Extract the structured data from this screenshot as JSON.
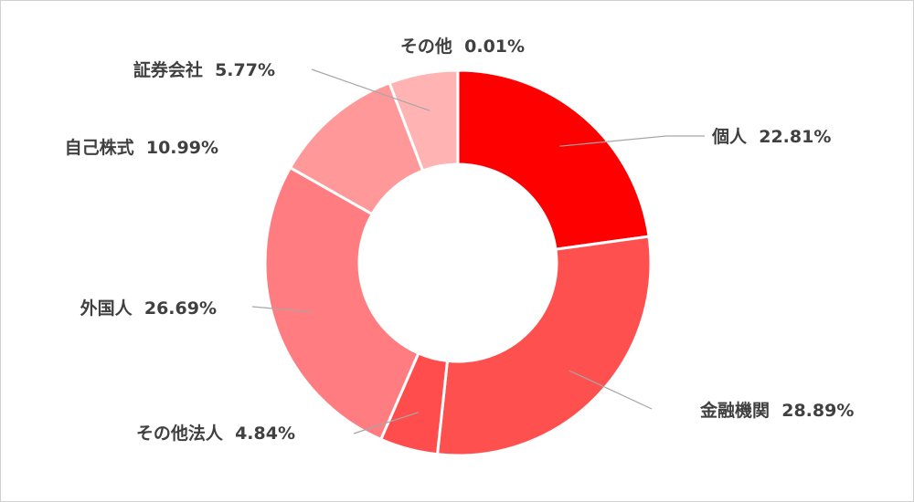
{
  "chart_data": {
    "type": "pie",
    "variant": "donut",
    "categories": [
      "個人",
      "金融機関",
      "その他法人",
      "外国人",
      "自己株式",
      "証券会社",
      "その他"
    ],
    "values": [
      22.81,
      28.89,
      4.84,
      26.69,
      10.99,
      5.77,
      0.01
    ],
    "labels": [
      "個人  22.81%",
      "金融機関  28.89%",
      "その他法人  4.84%",
      "外国人  26.69%",
      "自己株式  10.99%",
      "証券会社  5.77%",
      "その他  0.01%"
    ],
    "colors": [
      "#ff0000",
      "#ff5050",
      "#ff4d4d",
      "#ff7c80",
      "#ff9999",
      "#ffb3b3",
      "#ffcccc"
    ],
    "title": "",
    "legend": "none",
    "data_labels": "outside with leader lines"
  }
}
